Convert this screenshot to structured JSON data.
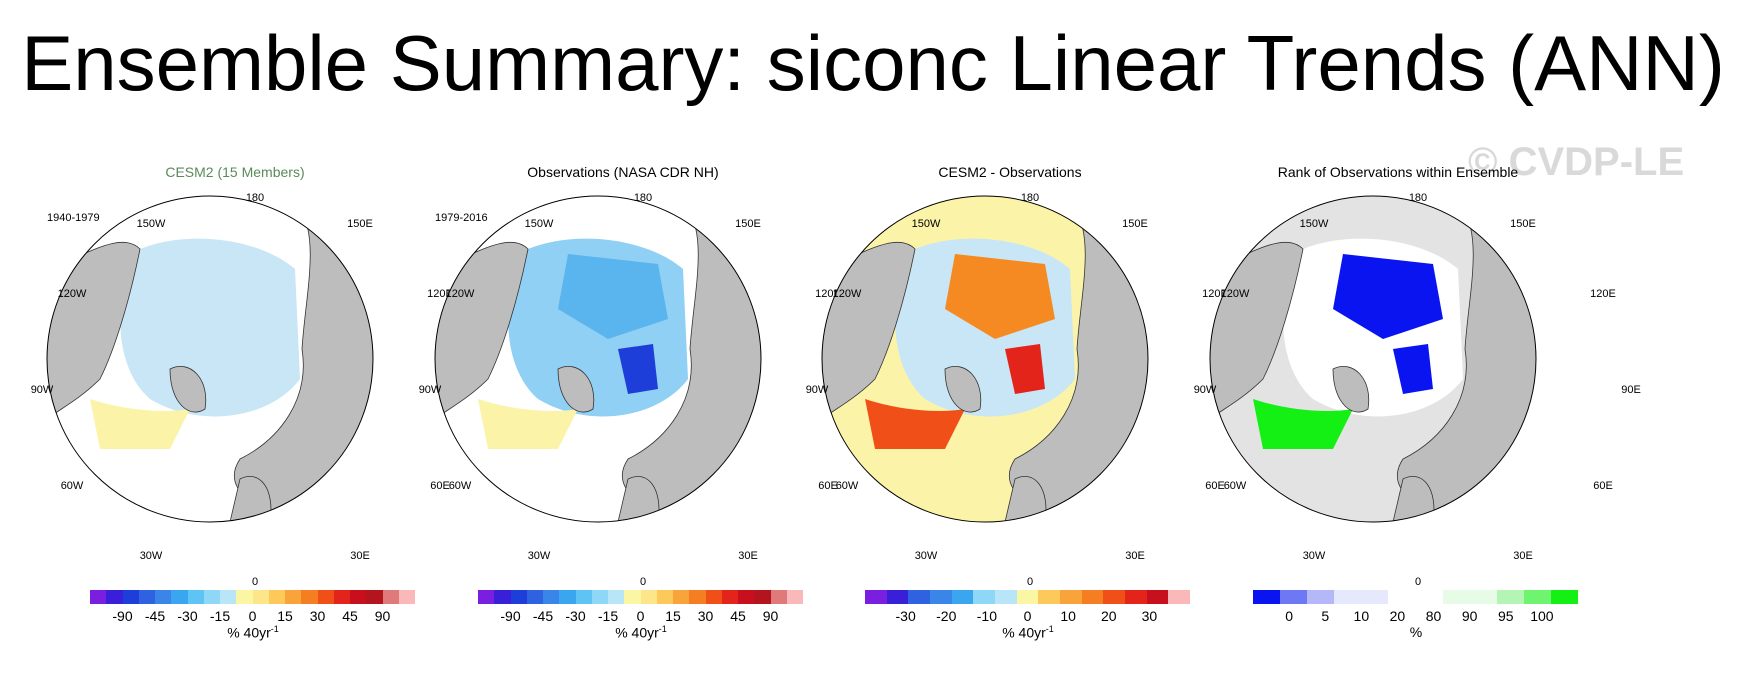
{
  "title": "Ensemble Summary: siconc Linear Trends (ANN)",
  "watermark": "© CVDP-LE",
  "lon_labels": {
    "top": "180",
    "tr": "150E",
    "tl": "150W",
    "r1": "120E",
    "l1": "120W",
    "r": "90E",
    "l": "90W",
    "r2": "60E",
    "l2": "60W",
    "br": "30E",
    "bl": "30W",
    "bottom": "0"
  },
  "panels": [
    {
      "title": "CESM2 (15 Members)",
      "title_color": "#5a8a5a",
      "period": "1940-1979",
      "colorbar": {
        "colors": [
          "#7a1fe0",
          "#3a1fd8",
          "#1d3ed9",
          "#2e62e0",
          "#3a86e8",
          "#3aa6f0",
          "#5ec4f4",
          "#8fd7f6",
          "#b8e6f8",
          "#fbf6a3",
          "#fde68a",
          "#fcc95a",
          "#f9a43a",
          "#f57d22",
          "#f05018",
          "#e2241a",
          "#c80f1e",
          "#b4141e",
          "#e07a7a",
          "#fbb8b8"
        ],
        "ticks": [
          "-90",
          "-45",
          "-30",
          "-15",
          "0",
          "15",
          "30",
          "45",
          "90"
        ],
        "label": "% 40yr",
        "label_sup": "-1"
      }
    },
    {
      "title": "Observations (NASA CDR NH)",
      "title_color": "#000000",
      "period": "1979-2016",
      "colorbar": {
        "colors": [
          "#7a1fe0",
          "#3a1fd8",
          "#1d3ed9",
          "#2e62e0",
          "#3a86e8",
          "#3aa6f0",
          "#5ec4f4",
          "#8fd7f6",
          "#b8e6f8",
          "#fbf6a3",
          "#fde68a",
          "#fcc95a",
          "#f9a43a",
          "#f57d22",
          "#f05018",
          "#e2241a",
          "#c80f1e",
          "#b4141e",
          "#e07a7a",
          "#fbb8b8"
        ],
        "ticks": [
          "-90",
          "-45",
          "-30",
          "-15",
          "0",
          "15",
          "30",
          "45",
          "90"
        ],
        "label": "% 40yr",
        "label_sup": "-1"
      }
    },
    {
      "title": "CESM2 - Observations",
      "title_color": "#000000",
      "period": "",
      "colorbar": {
        "colors": [
          "#7a1fe0",
          "#3a1fd8",
          "#2e62e0",
          "#3a86e8",
          "#3aa6f0",
          "#8fd7f6",
          "#b8e6f8",
          "#fbf6a3",
          "#fcc95a",
          "#f9a43a",
          "#f57d22",
          "#f05018",
          "#e2241a",
          "#c80f1e",
          "#fbb8b8"
        ],
        "ticks": [
          "-30",
          "-20",
          "-10",
          "0",
          "10",
          "20",
          "30"
        ],
        "label": "% 40yr",
        "label_sup": "-1"
      }
    },
    {
      "title": "Rank of Observations within Ensemble",
      "title_color": "#000000",
      "period": "",
      "colorbar": {
        "colors": [
          "#0a14f0",
          "#6e78f4",
          "#b4b8f8",
          "#e6e8fc",
          "#e6e8fc",
          "#ffffff",
          "#ffffff",
          "#e6fce6",
          "#e6fce6",
          "#b4f4b4",
          "#6ef46e",
          "#14f014"
        ],
        "ticks": [
          "0",
          "5",
          "10",
          "20",
          "80",
          "90",
          "95",
          "100"
        ],
        "label": "%",
        "label_sup": ""
      }
    }
  ]
}
